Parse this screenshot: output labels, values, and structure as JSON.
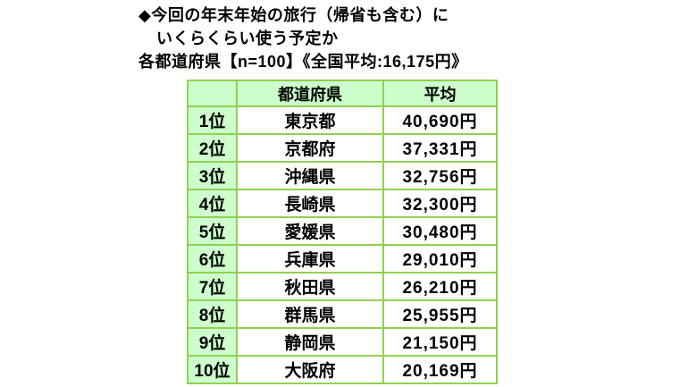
{
  "title": {
    "line1": "◆今回の年末年始の旅行（帰省も含む）に",
    "line2": "いくらくらい使う予定か",
    "line3": "各都道府県【n=100】《全国平均:16,175円》"
  },
  "chart_data": {
    "type": "table",
    "title": "今回の年末年始の旅行（帰省も含む）にいくらくらい使う予定か",
    "subtitle": "各都道府県【n=100】",
    "national_average": "16,175円",
    "columns": [
      "",
      "都道府県",
      "平均"
    ],
    "rows": [
      {
        "rank": "1位",
        "prefecture": "東京都",
        "average": "40,690円",
        "average_value": 40690
      },
      {
        "rank": "2位",
        "prefecture": "京都府",
        "average": "37,331円",
        "average_value": 37331
      },
      {
        "rank": "3位",
        "prefecture": "沖縄県",
        "average": "32,756円",
        "average_value": 32756
      },
      {
        "rank": "4位",
        "prefecture": "長崎県",
        "average": "32,300円",
        "average_value": 32300
      },
      {
        "rank": "5位",
        "prefecture": "愛媛県",
        "average": "30,480円",
        "average_value": 30480
      },
      {
        "rank": "6位",
        "prefecture": "兵庫県",
        "average": "29,010円",
        "average_value": 29010
      },
      {
        "rank": "7位",
        "prefecture": "秋田県",
        "average": "26,210円",
        "average_value": 26210
      },
      {
        "rank": "8位",
        "prefecture": "群馬県",
        "average": "25,955円",
        "average_value": 25955
      },
      {
        "rank": "9位",
        "prefecture": "静岡県",
        "average": "21,150円",
        "average_value": 21150
      },
      {
        "rank": "10位",
        "prefecture": "大阪府",
        "average": "20,169円",
        "average_value": 20169
      }
    ]
  },
  "colors": {
    "cell_fill_green": "#ccffcc",
    "table_border_green": "#92d050",
    "text": "#000000",
    "background": "#ffffff"
  }
}
